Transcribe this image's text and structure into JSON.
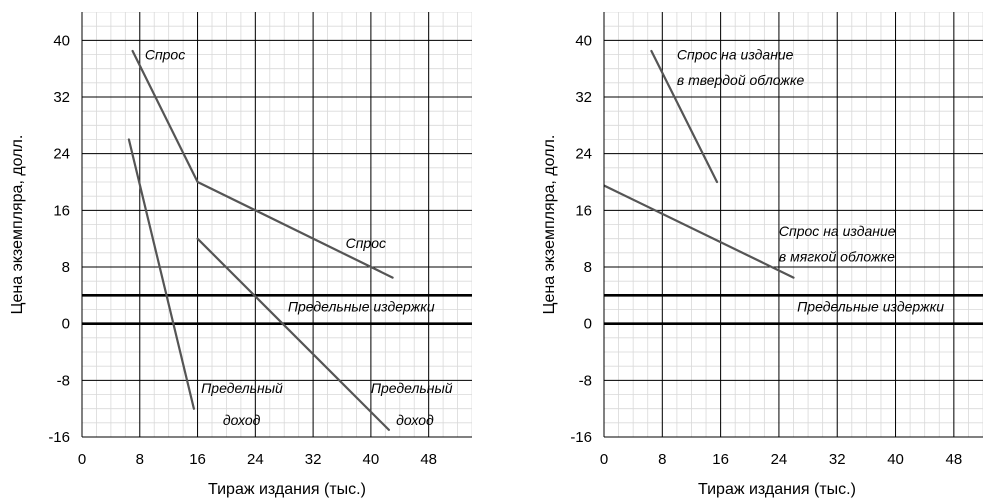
{
  "chart_data": [
    {
      "type": "line",
      "xlabel": "Тираж издания (тыс.)",
      "ylabel": "Цена экземпляра, долл.",
      "xlim": [
        0,
        54
      ],
      "ylim": [
        -16,
        44
      ],
      "xticks": [
        "0",
        "8",
        "16",
        "24",
        "32",
        "40",
        "48"
      ],
      "yticks": [
        "40",
        "32",
        "24",
        "16",
        "8",
        "0",
        "-8",
        "-16"
      ],
      "grid": true,
      "series": [
        {
          "name": "",
          "color": "#555555",
          "points": [
            [
              7,
              38.5
            ],
            [
              16,
              20
            ],
            [
              43,
              6.5
            ]
          ]
        },
        {
          "name": "",
          "color": "#555555",
          "points": [
            [
              6.5,
              26
            ],
            [
              15.5,
              -12
            ]
          ]
        },
        {
          "name": "",
          "color": "#555555",
          "points": [
            [
              16,
              12
            ],
            [
              42.5,
              -15
            ]
          ]
        }
      ],
      "hlines": [
        {
          "y": 4,
          "color": "#000000"
        },
        {
          "y": 0,
          "color": "#000000"
        }
      ],
      "annotations": [
        {
          "text": "Спрос",
          "x": 8.7,
          "y": 37.3
        },
        {
          "text": "Спрос",
          "x": 36.5,
          "y": 10.7
        },
        {
          "text": "Предельные издержки",
          "x": 28.5,
          "y": 1.7
        },
        {
          "text": "Предельный",
          "x": 16.5,
          "y": -9.8
        },
        {
          "text": "доход",
          "x": 19.5,
          "y": -14.3
        },
        {
          "text": "Предельный",
          "x": 40,
          "y": -9.8
        },
        {
          "text": "доход",
          "x": 43.5,
          "y": -14.3
        }
      ]
    },
    {
      "type": "line",
      "xlabel": "Тираж издания (тыс.)",
      "ylabel": "Цена экземпляра, долл.",
      "xlim": [
        0,
        52
      ],
      "ylim": [
        -16,
        44
      ],
      "xticks": [
        "0",
        "8",
        "16",
        "24",
        "32",
        "40",
        "48"
      ],
      "yticks": [
        "40",
        "32",
        "24",
        "16",
        "8",
        "0",
        "-8",
        "-16"
      ],
      "grid": true,
      "series": [
        {
          "name": "",
          "color": "#555555",
          "points": [
            [
              6.5,
              38.5
            ],
            [
              15.5,
              20
            ]
          ]
        },
        {
          "name": "",
          "color": "#555555",
          "points": [
            [
              0,
              19.5
            ],
            [
              26,
              6.5
            ]
          ]
        }
      ],
      "hlines": [
        {
          "y": 4,
          "color": "#000000"
        },
        {
          "y": 0,
          "color": "#000000"
        }
      ],
      "annotations": [
        {
          "text": "Спрос на издание",
          "x": 10,
          "y": 37.3
        },
        {
          "text": "в твердой обложке",
          "x": 10,
          "y": 33.7
        },
        {
          "text": "Спрос на издание",
          "x": 24,
          "y": 12.4
        },
        {
          "text": "в мягкой обложке",
          "x": 24,
          "y": 8.8
        },
        {
          "text": "Предельные издержки",
          "x": 26.5,
          "y": 1.7
        }
      ]
    }
  ]
}
